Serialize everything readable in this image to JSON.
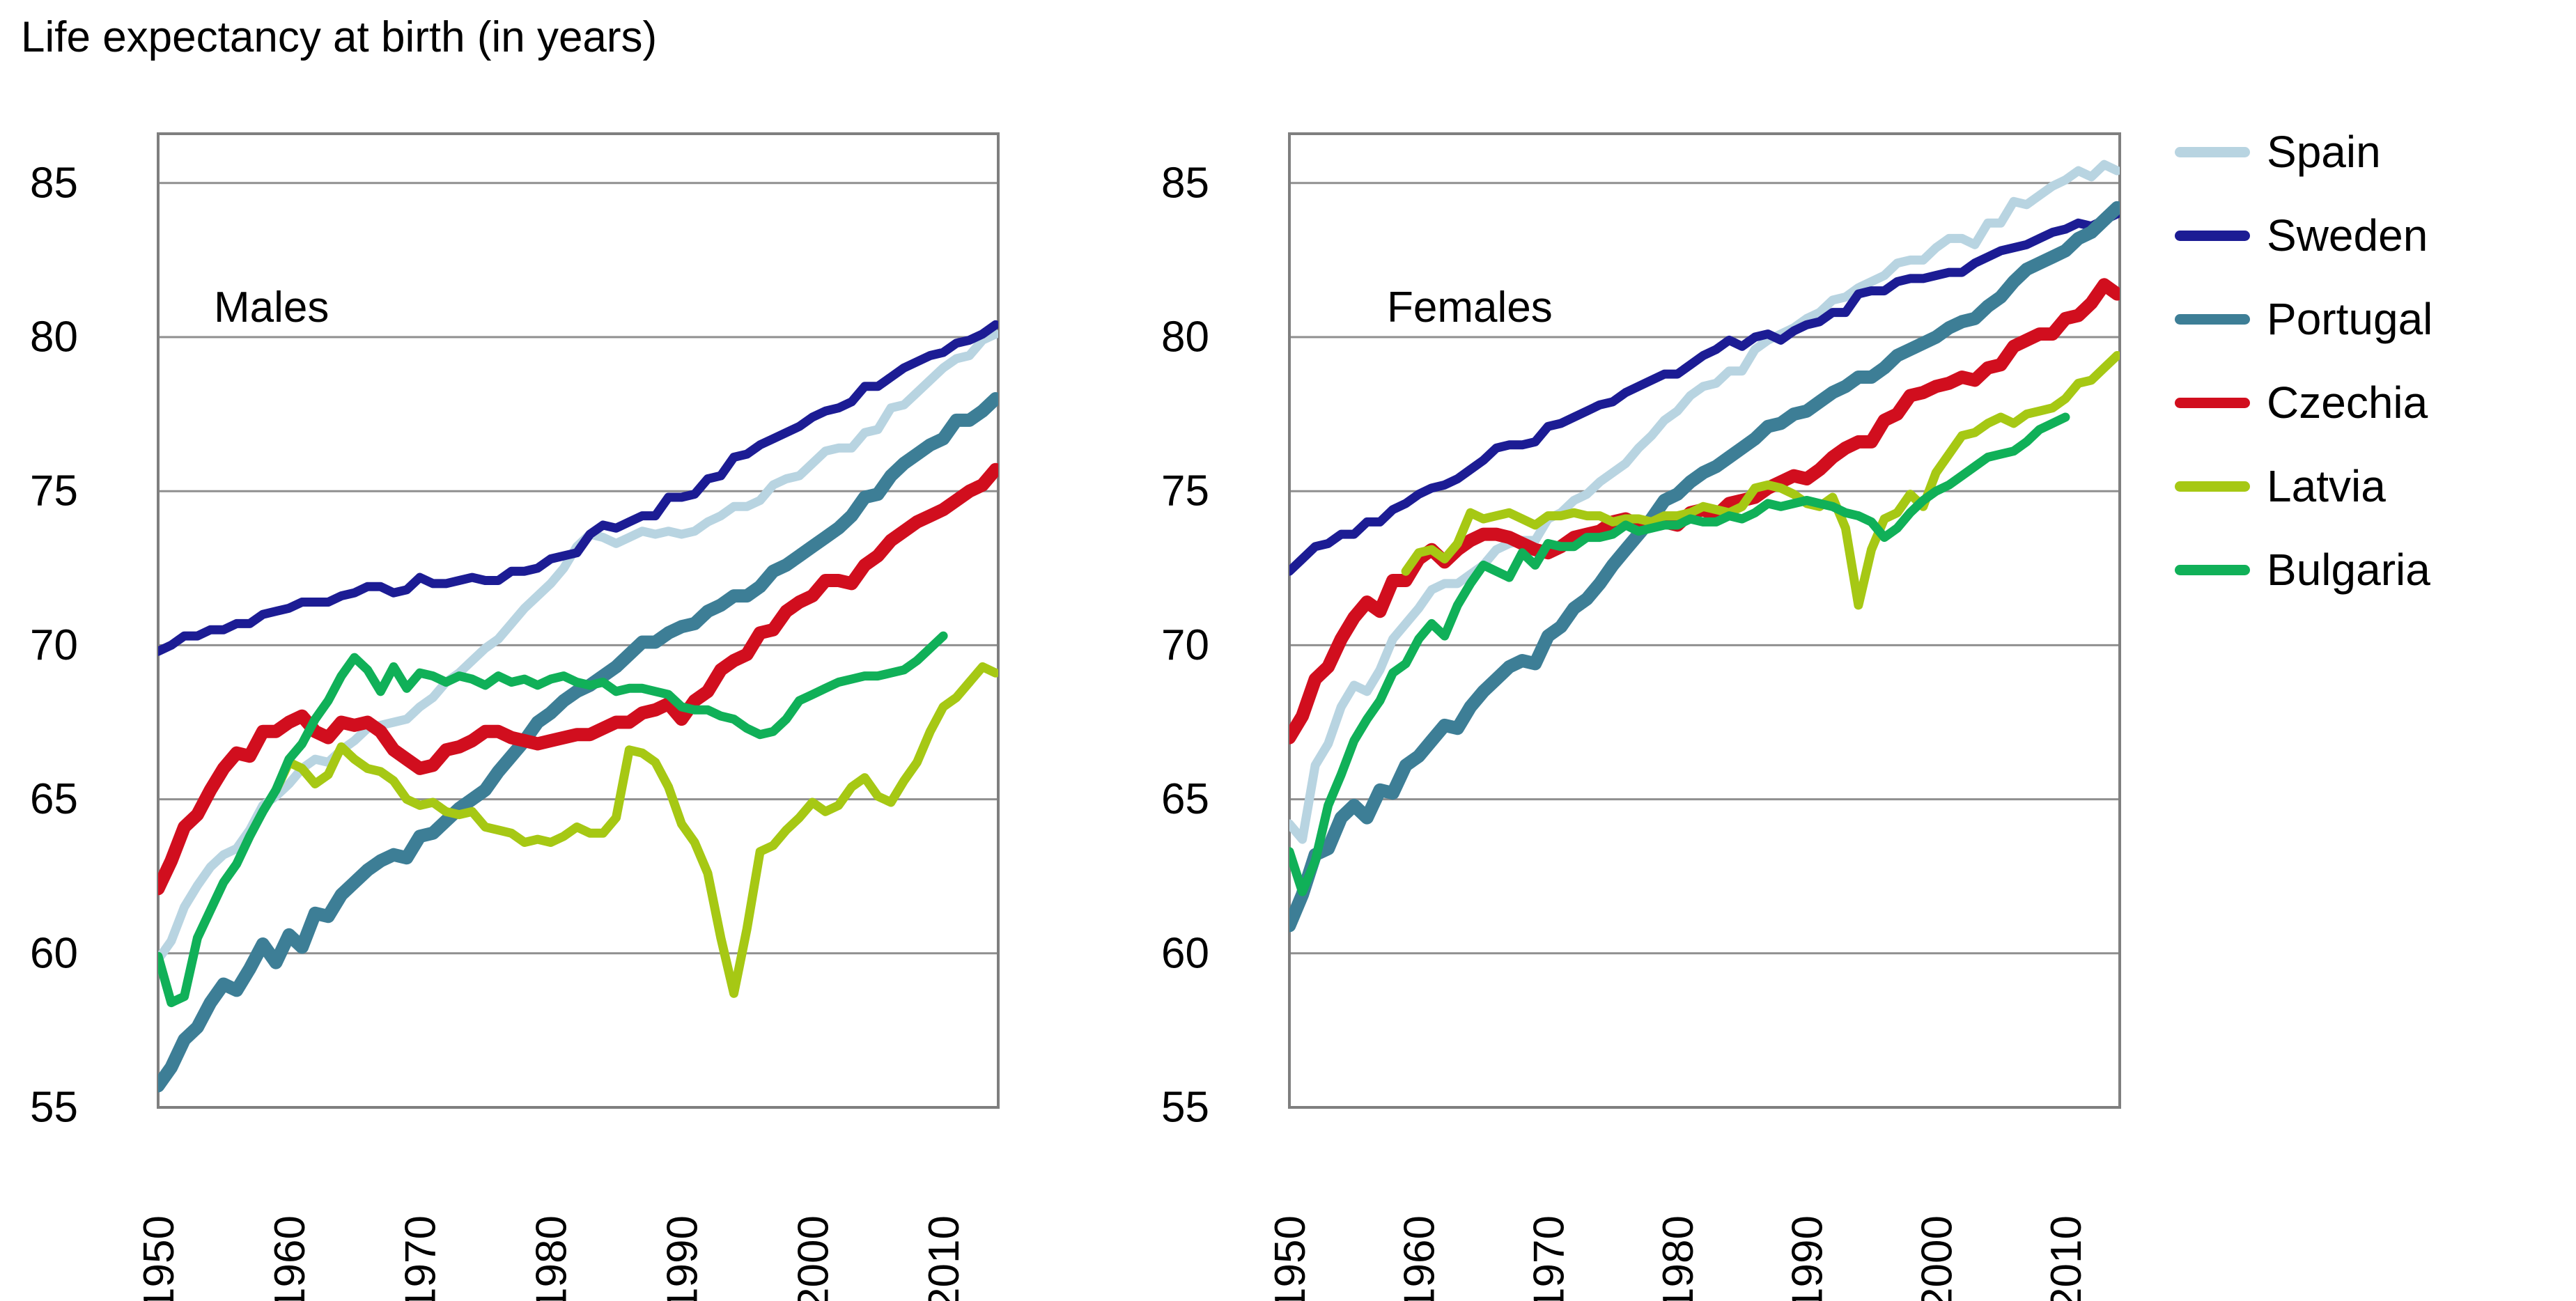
{
  "title": "Life expectancy at birth (in years)",
  "legend": {
    "position": "right",
    "entries": [
      {
        "label": "Spain",
        "color": "#b8d4e1"
      },
      {
        "label": "Sweden",
        "color": "#1c1c94"
      },
      {
        "label": "Portugal",
        "color": "#3d7e96"
      },
      {
        "label": "Czechia",
        "color": "#d10e1e"
      },
      {
        "label": "Latvia",
        "color": "#a6c814"
      },
      {
        "label": "Bulgaria",
        "color": "#10b058"
      }
    ]
  },
  "axes": {
    "y_unit": "years",
    "ylim": [
      55,
      86.6
    ],
    "xlim": [
      1950,
      2014.2
    ],
    "grid": "horizontal"
  },
  "chart_data": [
    {
      "type": "line",
      "title": "Males",
      "xlabel": "",
      "ylabel": "",
      "ylim": [
        55,
        86.6
      ],
      "yticks": [
        85,
        80,
        75,
        70,
        65,
        60,
        55
      ],
      "xticks": [
        1950,
        1960,
        1970,
        1980,
        1990,
        2000,
        2010
      ],
      "series": [
        {
          "name": "Spain",
          "color": "#b8d4e1",
          "start_year": 1950,
          "values": [
            59.8,
            60.4,
            61.5,
            62.2,
            62.8,
            63.2,
            63.4,
            64.0,
            64.8,
            65.1,
            65.5,
            66.0,
            66.3,
            66.2,
            66.6,
            66.9,
            67.3,
            67.4,
            67.5,
            67.6,
            68.0,
            68.3,
            68.8,
            69.1,
            69.5,
            69.9,
            70.2,
            70.7,
            71.2,
            71.6,
            72.0,
            72.5,
            73.2,
            73.6,
            73.5,
            73.3,
            73.5,
            73.7,
            73.6,
            73.7,
            73.6,
            73.7,
            74.0,
            74.2,
            74.5,
            74.5,
            74.7,
            75.2,
            75.4,
            75.5,
            75.9,
            76.3,
            76.4,
            76.4,
            76.9,
            77.0,
            77.7,
            77.8,
            78.2,
            78.6,
            79.0,
            79.3,
            79.4,
            79.9,
            80.1
          ]
        },
        {
          "name": "Sweden",
          "color": "#1c1c94",
          "start_year": 1950,
          "values": [
            69.8,
            70.0,
            70.3,
            70.3,
            70.5,
            70.5,
            70.7,
            70.7,
            71.0,
            71.1,
            71.2,
            71.4,
            71.4,
            71.4,
            71.6,
            71.7,
            71.9,
            71.9,
            71.7,
            71.8,
            72.2,
            72.0,
            72.0,
            72.1,
            72.2,
            72.1,
            72.1,
            72.4,
            72.4,
            72.5,
            72.8,
            72.9,
            73.0,
            73.6,
            73.9,
            73.8,
            74.0,
            74.2,
            74.2,
            74.8,
            74.8,
            74.9,
            75.4,
            75.5,
            76.1,
            76.2,
            76.5,
            76.7,
            76.9,
            77.1,
            77.4,
            77.6,
            77.7,
            77.9,
            78.4,
            78.4,
            78.7,
            79.0,
            79.2,
            79.4,
            79.5,
            79.8,
            79.9,
            80.1,
            80.4
          ]
        },
        {
          "name": "Portugal",
          "color": "#3d7e96",
          "start_year": 1950,
          "values": [
            55.7,
            56.3,
            57.2,
            57.6,
            58.4,
            59.0,
            58.8,
            59.5,
            60.3,
            59.7,
            60.6,
            60.2,
            61.3,
            61.2,
            61.9,
            62.3,
            62.7,
            63.0,
            63.2,
            63.1,
            63.8,
            63.9,
            64.3,
            64.7,
            65.0,
            65.3,
            65.9,
            66.4,
            66.9,
            67.5,
            67.8,
            68.2,
            68.5,
            68.7,
            69.0,
            69.3,
            69.7,
            70.1,
            70.1,
            70.4,
            70.6,
            70.7,
            71.1,
            71.3,
            71.6,
            71.6,
            71.9,
            72.4,
            72.6,
            72.9,
            73.2,
            73.5,
            73.8,
            74.2,
            74.8,
            74.9,
            75.5,
            75.9,
            76.2,
            76.5,
            76.7,
            77.3,
            77.3,
            77.6,
            78.0
          ]
        },
        {
          "name": "Czechia",
          "color": "#d10e1e",
          "start_year": 1950,
          "values": [
            62.1,
            63.0,
            64.1,
            64.5,
            65.3,
            66.0,
            66.5,
            66.4,
            67.2,
            67.2,
            67.5,
            67.7,
            67.2,
            67.0,
            67.5,
            67.4,
            67.5,
            67.2,
            66.6,
            66.3,
            66.0,
            66.1,
            66.6,
            66.7,
            66.9,
            67.2,
            67.2,
            67.0,
            66.9,
            66.8,
            66.9,
            67.0,
            67.1,
            67.1,
            67.3,
            67.5,
            67.5,
            67.8,
            67.9,
            68.1,
            67.6,
            68.2,
            68.5,
            69.2,
            69.5,
            69.7,
            70.4,
            70.5,
            71.1,
            71.4,
            71.6,
            72.1,
            72.1,
            72.0,
            72.6,
            72.9,
            73.4,
            73.7,
            74.0,
            74.2,
            74.4,
            74.7,
            75.0,
            75.2,
            75.7
          ]
        },
        {
          "name": "Latvia",
          "color": "#a6c814",
          "start_year": 1959,
          "values": [
            65.3,
            66.2,
            66.0,
            65.5,
            65.8,
            66.7,
            66.3,
            66.0,
            65.9,
            65.6,
            65.0,
            64.8,
            64.9,
            64.6,
            64.5,
            64.6,
            64.1,
            64.0,
            63.9,
            63.6,
            63.7,
            63.6,
            63.8,
            64.1,
            63.9,
            63.9,
            64.4,
            66.6,
            66.5,
            66.2,
            65.4,
            64.2,
            63.6,
            62.6,
            60.5,
            58.7,
            60.8,
            63.3,
            63.5,
            64.0,
            64.4,
            64.9,
            64.6,
            64.8,
            65.4,
            65.7,
            65.1,
            64.9,
            65.6,
            66.2,
            67.2,
            68.0,
            68.3,
            68.8,
            69.3,
            69.1
          ]
        },
        {
          "name": "Bulgaria",
          "color": "#10b058",
          "start_year": 1950,
          "values": [
            59.9,
            58.4,
            58.6,
            60.5,
            61.4,
            62.3,
            62.9,
            63.8,
            64.6,
            65.3,
            66.3,
            66.8,
            67.6,
            68.2,
            69.0,
            69.6,
            69.2,
            68.5,
            69.3,
            68.6,
            69.1,
            69.0,
            68.8,
            69.0,
            68.9,
            68.7,
            69.0,
            68.8,
            68.9,
            68.7,
            68.9,
            69.0,
            68.8,
            68.7,
            68.8,
            68.5,
            68.6,
            68.6,
            68.5,
            68.4,
            68.0,
            67.9,
            67.9,
            67.7,
            67.6,
            67.3,
            67.1,
            67.2,
            67.6,
            68.2,
            68.4,
            68.6,
            68.8,
            68.9,
            69.0,
            69.0,
            69.1,
            69.2,
            69.5,
            69.9,
            70.3
          ]
        }
      ]
    },
    {
      "type": "line",
      "title": "Females",
      "xlabel": "",
      "ylabel": "",
      "ylim": [
        55,
        86.6
      ],
      "yticks": [
        85,
        80,
        75,
        70,
        65,
        60,
        55
      ],
      "xticks": [
        1950,
        1960,
        1970,
        1980,
        1990,
        2000,
        2010
      ],
      "series": [
        {
          "name": "Spain",
          "color": "#b8d4e1",
          "start_year": 1950,
          "values": [
            64.2,
            63.7,
            66.1,
            66.8,
            68.0,
            68.7,
            68.5,
            69.2,
            70.2,
            70.7,
            71.2,
            71.8,
            72.0,
            72.0,
            72.3,
            72.6,
            73.1,
            73.3,
            73.4,
            73.4,
            74.1,
            74.3,
            74.7,
            74.9,
            75.3,
            75.6,
            75.9,
            76.4,
            76.8,
            77.3,
            77.6,
            78.1,
            78.4,
            78.5,
            78.9,
            78.9,
            79.6,
            79.9,
            80.1,
            80.3,
            80.6,
            80.8,
            81.2,
            81.3,
            81.6,
            81.8,
            82.0,
            82.4,
            82.5,
            82.5,
            82.9,
            83.2,
            83.2,
            83.0,
            83.7,
            83.7,
            84.4,
            84.3,
            84.6,
            84.9,
            85.1,
            85.4,
            85.2,
            85.6,
            85.4
          ]
        },
        {
          "name": "Sweden",
          "color": "#1c1c94",
          "start_year": 1950,
          "values": [
            72.4,
            72.8,
            73.2,
            73.3,
            73.6,
            73.6,
            74.0,
            74.0,
            74.4,
            74.6,
            74.9,
            75.1,
            75.2,
            75.4,
            75.7,
            76.0,
            76.4,
            76.5,
            76.5,
            76.6,
            77.1,
            77.2,
            77.4,
            77.6,
            77.8,
            77.9,
            78.2,
            78.4,
            78.6,
            78.8,
            78.8,
            79.1,
            79.4,
            79.6,
            79.9,
            79.7,
            80.0,
            80.1,
            79.9,
            80.2,
            80.4,
            80.5,
            80.8,
            80.8,
            81.4,
            81.5,
            81.5,
            81.8,
            81.9,
            81.9,
            82.0,
            82.1,
            82.1,
            82.4,
            82.6,
            82.8,
            82.9,
            83.0,
            83.2,
            83.4,
            83.5,
            83.7,
            83.6,
            83.8,
            84.0
          ]
        },
        {
          "name": "Portugal",
          "color": "#3d7e96",
          "start_year": 1950,
          "values": [
            60.9,
            61.9,
            63.2,
            63.4,
            64.4,
            64.8,
            64.4,
            65.3,
            65.2,
            66.1,
            66.4,
            66.9,
            67.4,
            67.3,
            68.0,
            68.5,
            68.9,
            69.3,
            69.5,
            69.4,
            70.3,
            70.6,
            71.2,
            71.5,
            72.0,
            72.6,
            73.1,
            73.6,
            74.1,
            74.7,
            74.9,
            75.3,
            75.6,
            75.8,
            76.1,
            76.4,
            76.7,
            77.1,
            77.2,
            77.5,
            77.6,
            77.9,
            78.2,
            78.4,
            78.7,
            78.7,
            79.0,
            79.4,
            79.6,
            79.8,
            80.0,
            80.3,
            80.5,
            80.6,
            81.0,
            81.3,
            81.8,
            82.2,
            82.4,
            82.6,
            82.8,
            83.2,
            83.4,
            83.8,
            84.2
          ]
        },
        {
          "name": "Czechia",
          "color": "#d10e1e",
          "start_year": 1950,
          "values": [
            67.0,
            67.7,
            68.9,
            69.3,
            70.2,
            70.9,
            71.4,
            71.1,
            72.1,
            72.1,
            72.8,
            73.1,
            72.7,
            73.1,
            73.4,
            73.6,
            73.6,
            73.5,
            73.3,
            73.1,
            73.0,
            73.2,
            73.5,
            73.6,
            73.7,
            74.0,
            74.1,
            73.9,
            73.9,
            74.0,
            73.9,
            74.3,
            74.4,
            74.2,
            74.6,
            74.7,
            74.8,
            75.1,
            75.3,
            75.5,
            75.4,
            75.7,
            76.1,
            76.4,
            76.6,
            76.6,
            77.3,
            77.5,
            78.1,
            78.2,
            78.4,
            78.5,
            78.7,
            78.6,
            79.0,
            79.1,
            79.7,
            79.9,
            80.1,
            80.1,
            80.6,
            80.7,
            81.1,
            81.7,
            81.4
          ]
        },
        {
          "name": "Latvia",
          "color": "#a6c814",
          "start_year": 1959,
          "values": [
            72.4,
            73.0,
            73.1,
            72.8,
            73.3,
            74.3,
            74.1,
            74.2,
            74.3,
            74.1,
            73.9,
            74.2,
            74.2,
            74.3,
            74.2,
            74.2,
            74.0,
            74.1,
            74.1,
            74.0,
            74.2,
            74.2,
            74.3,
            74.5,
            74.4,
            74.3,
            74.5,
            75.1,
            75.2,
            75.1,
            74.9,
            74.6,
            74.5,
            74.8,
            73.8,
            71.3,
            73.1,
            74.1,
            74.3,
            74.9,
            74.5,
            75.6,
            76.2,
            76.8,
            76.9,
            77.2,
            77.4,
            77.2,
            77.5,
            77.6,
            77.7,
            78.0,
            78.5,
            78.6,
            79.0,
            79.4
          ]
        },
        {
          "name": "Bulgaria",
          "color": "#10b058",
          "start_year": 1950,
          "values": [
            63.3,
            62.0,
            63.0,
            64.8,
            65.8,
            66.9,
            67.6,
            68.2,
            69.1,
            69.4,
            70.2,
            70.7,
            70.3,
            71.3,
            72.0,
            72.6,
            72.4,
            72.2,
            73.0,
            72.6,
            73.3,
            73.2,
            73.2,
            73.5,
            73.5,
            73.6,
            73.9,
            73.7,
            73.8,
            73.9,
            73.9,
            74.1,
            74.0,
            74.0,
            74.2,
            74.1,
            74.3,
            74.6,
            74.5,
            74.6,
            74.7,
            74.6,
            74.5,
            74.3,
            74.2,
            74.0,
            73.5,
            73.8,
            74.3,
            74.7,
            75.0,
            75.2,
            75.5,
            75.8,
            76.1,
            76.2,
            76.3,
            76.6,
            77.0,
            77.2,
            77.4
          ]
        }
      ]
    }
  ]
}
